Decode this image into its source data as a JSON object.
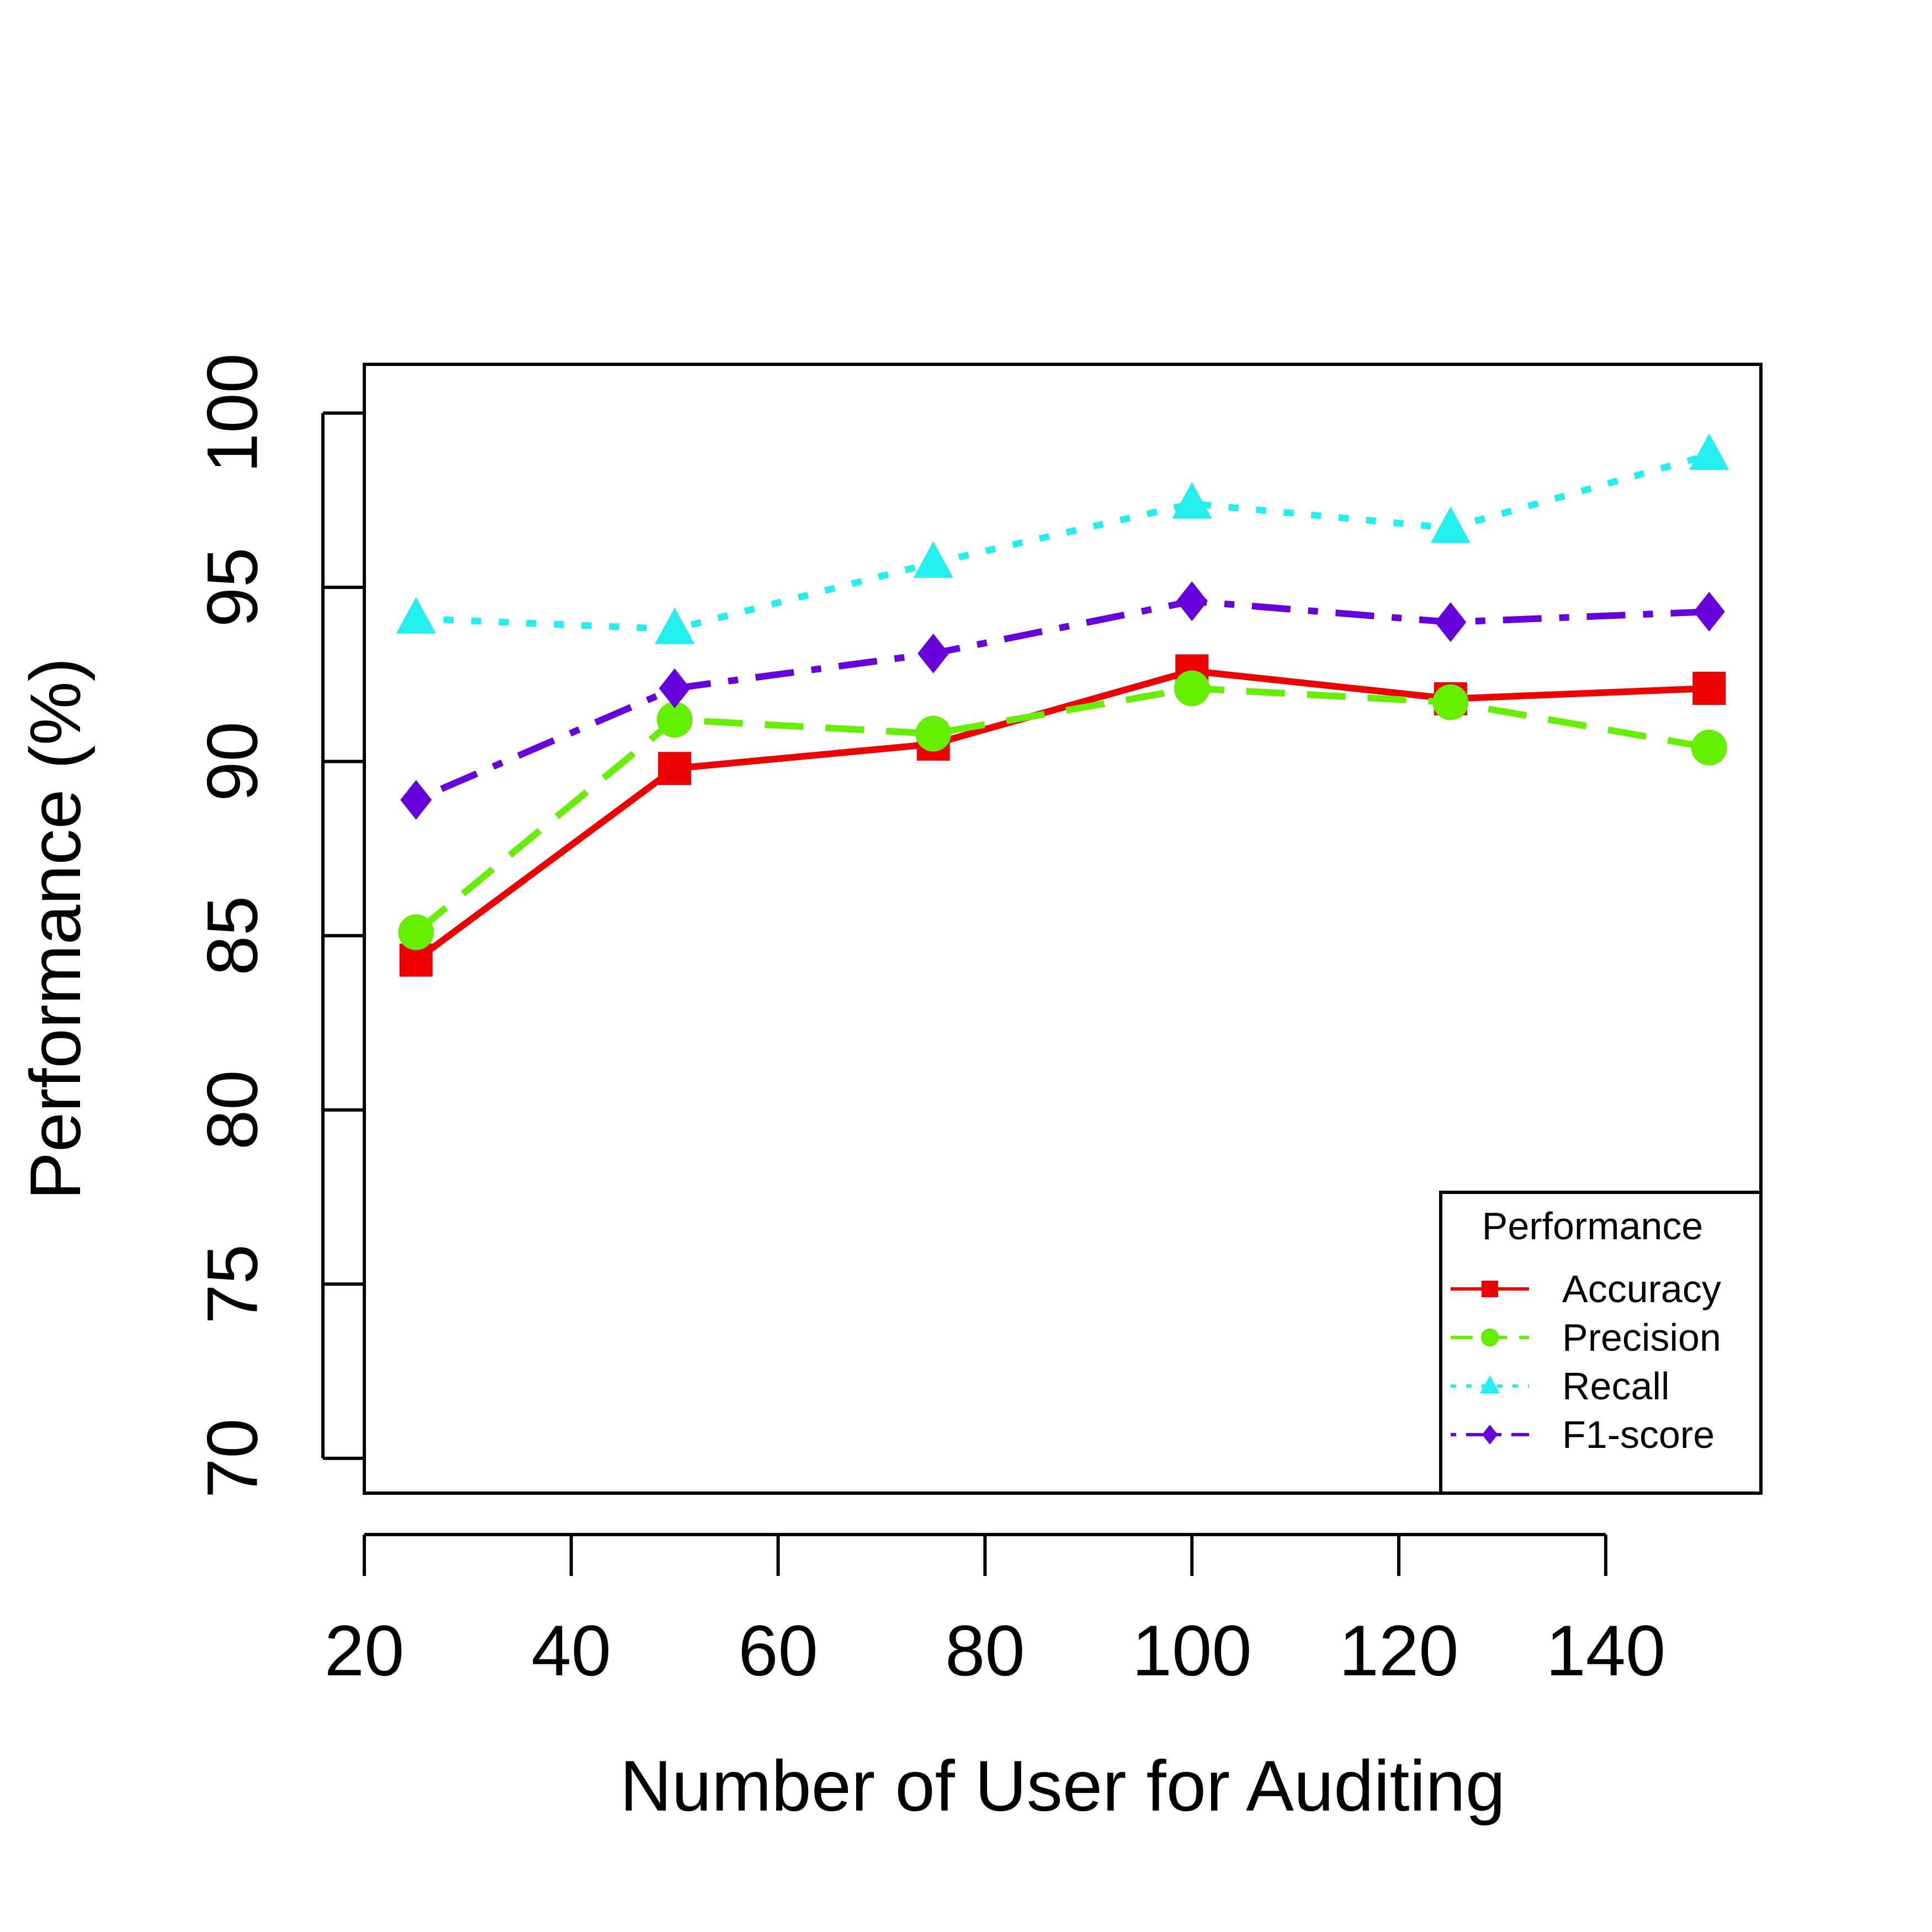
{
  "chart_data": {
    "type": "line",
    "xlabel": "Number of User for Auditing",
    "ylabel": "Performance (%)",
    "xlim": [
      20,
      155
    ],
    "ylim": [
      69,
      101.4
    ],
    "x_ticks": [
      20,
      40,
      60,
      80,
      100,
      120,
      140
    ],
    "y_ticks": [
      70,
      75,
      80,
      85,
      90,
      95,
      100
    ],
    "grid": false,
    "legend": {
      "title": "Performance",
      "position": "bottom-right"
    },
    "x": [
      25,
      50,
      75,
      100,
      125,
      150
    ],
    "series": [
      {
        "name": "Accuracy",
        "values": [
          84.3,
          89.8,
          90.5,
          92.6,
          91.8,
          92.1
        ],
        "color": "#ee0000",
        "marker": "square",
        "dash": "solid"
      },
      {
        "name": "Precision",
        "values": [
          85.1,
          91.2,
          90.8,
          92.1,
          91.7,
          90.4
        ],
        "color": "#66ee00",
        "marker": "circle",
        "dash": "dashed"
      },
      {
        "name": "Recall",
        "values": [
          94.1,
          93.8,
          95.7,
          97.4,
          96.7,
          98.8
        ],
        "color": "#22eeee",
        "marker": "triangle",
        "dash": "dotted"
      },
      {
        "name": "F1-score",
        "values": [
          88.9,
          92.1,
          93.1,
          94.6,
          94.0,
          94.3
        ],
        "color": "#6600dd",
        "marker": "diamond",
        "dash": "dotdash"
      }
    ]
  }
}
